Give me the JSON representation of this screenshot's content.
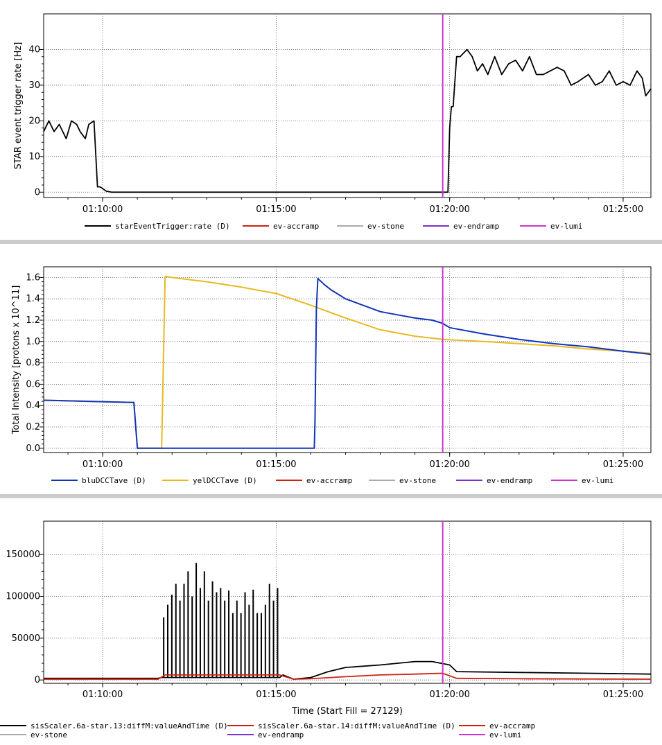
{
  "colors": {
    "black": "#000000",
    "red": "#cc2211",
    "gray": "#aaaaaa",
    "purple": "#7733cc",
    "magenta": "#cc33cc",
    "blue": "#1133bb",
    "yellow": "#e8b820",
    "separator": "#cccccc"
  },
  "x_axis": {
    "title": "Time (Start Fill = 27129)",
    "tick_labels": [
      "01:10:00",
      "01:15:00",
      "01:20:00",
      "01:25:00"
    ],
    "tick_minutes": [
      10,
      15,
      20,
      25
    ],
    "range_minutes": [
      8.3,
      25.8
    ],
    "event_line_minute": 19.8
  },
  "chart_data": [
    {
      "type": "line",
      "ylabel": "STAR event trigger rate [Hz]",
      "ylim": [
        -1.5,
        50
      ],
      "yticks": [
        0,
        10,
        20,
        30,
        40
      ],
      "ytick_labels": [
        "0",
        "10",
        "20",
        "30",
        "40"
      ],
      "grid": true,
      "series": [
        {
          "name": "starEventTrigger:rate (D)",
          "color": "black",
          "x": [
            8.3,
            8.45,
            8.6,
            8.75,
            8.95,
            9.1,
            9.25,
            9.35,
            9.5,
            9.6,
            9.75,
            9.85,
            9.92,
            9.97,
            10.0,
            10.1,
            10.25,
            11,
            15,
            19.8,
            19.95,
            20.0,
            20.05,
            20.1,
            20.2,
            20.3,
            20.5,
            20.65,
            20.8,
            20.95,
            21.1,
            21.3,
            21.5,
            21.7,
            21.9,
            22.1,
            22.3,
            22.5,
            22.7,
            22.9,
            23.1,
            23.3,
            23.5,
            23.7,
            23.85,
            24.0,
            24.2,
            24.4,
            24.6,
            24.8,
            25.0,
            25.2,
            25.4,
            25.55,
            25.65,
            25.8
          ],
          "y": [
            17,
            20,
            17,
            19,
            15,
            20,
            19,
            17,
            15,
            19,
            20,
            1.5,
            1.5,
            1.2,
            1.0,
            0.3,
            0,
            0,
            0,
            0,
            0,
            18,
            24,
            24,
            38,
            38,
            40,
            38,
            34,
            36,
            33,
            38,
            33,
            36,
            37,
            34,
            38,
            33,
            33,
            34,
            35,
            34,
            30,
            31,
            32,
            33,
            30,
            31,
            34,
            30,
            31,
            30,
            34,
            32,
            27,
            29
          ]
        }
      ],
      "legend": [
        {
          "label": "starEventTrigger:rate (D)",
          "color": "black"
        },
        {
          "label": "ev-accramp",
          "color": "red"
        },
        {
          "label": "ev-stone",
          "color": "gray"
        },
        {
          "label": "ev-endramp",
          "color": "purple"
        },
        {
          "label": "ev-lumi",
          "color": "magenta"
        }
      ]
    },
    {
      "type": "line",
      "ylabel": "Total Intensity [protons x 10^11]",
      "ylim": [
        -0.04,
        1.7
      ],
      "yticks": [
        0.0,
        0.2,
        0.4,
        0.6,
        0.8,
        1.0,
        1.2,
        1.4,
        1.6
      ],
      "ytick_labels": [
        "0.0",
        "0.2",
        "0.4",
        "0.6",
        "0.8",
        "1.0",
        "1.2",
        "1.4",
        "1.6"
      ],
      "grid": true,
      "series": [
        {
          "name": "yelDCCTave (D)",
          "color": "yellow",
          "x": [
            8.3,
            10.8,
            10.9,
            11.0,
            11.7,
            11.8,
            12.0,
            13.0,
            14.0,
            15.0,
            16.0,
            17.0,
            18.0,
            19.0,
            19.8,
            21.0,
            22.0,
            23.0,
            24.0,
            25.0,
            25.8
          ],
          "y": [
            0.45,
            0.43,
            0.43,
            0.0,
            0.0,
            1.61,
            1.6,
            1.56,
            1.51,
            1.45,
            1.34,
            1.22,
            1.11,
            1.05,
            1.02,
            1.0,
            0.98,
            0.96,
            0.93,
            0.91,
            0.89
          ]
        },
        {
          "name": "bluDCCTave (D)",
          "color": "blue",
          "x": [
            8.3,
            10.8,
            10.9,
            11.0,
            16.1,
            16.12,
            16.16,
            16.2,
            16.4,
            16.6,
            16.8,
            17.0,
            17.5,
            18.0,
            18.5,
            19.0,
            19.5,
            19.8,
            20.0,
            21.0,
            22.0,
            23.0,
            24.0,
            25.0,
            25.8
          ],
          "y": [
            0.45,
            0.43,
            0.43,
            0.0,
            0.0,
            0.25,
            1.3,
            1.59,
            1.53,
            1.48,
            1.44,
            1.4,
            1.34,
            1.28,
            1.25,
            1.22,
            1.2,
            1.17,
            1.13,
            1.07,
            1.02,
            0.98,
            0.95,
            0.91,
            0.88
          ]
        }
      ],
      "legend": [
        {
          "label": "bluDCCTave (D)",
          "color": "blue"
        },
        {
          "label": "yelDCCTave (D)",
          "color": "yellow"
        },
        {
          "label": "ev-accramp",
          "color": "red"
        },
        {
          "label": "ev-stone",
          "color": "gray"
        },
        {
          "label": "ev-endramp",
          "color": "purple"
        },
        {
          "label": "ev-lumi",
          "color": "magenta"
        }
      ]
    },
    {
      "type": "line",
      "ylabel": "",
      "xlabel": "Time (Start Fill = 27129)",
      "ylim": [
        -4000,
        190000
      ],
      "yticks": [
        0,
        50000,
        100000,
        150000
      ],
      "ytick_labels": [
        "0",
        "50000",
        "100000",
        "150000"
      ],
      "grid": true,
      "series": [
        {
          "name": "sisScaler.6a-star.13:diffM:valueAndTime (D)",
          "color": "black",
          "spike_region": {
            "x_start": 11.7,
            "x_end": 15.1,
            "peak_values": [
              75000,
              90000,
              102000,
              115000,
              95000,
              115000,
              130000,
              100000,
              140000,
              110000,
              130000,
              95000,
              118000,
              105000,
              110000,
              95000,
              107000,
              80000,
              95000,
              80000,
              105000,
              90000,
              108000,
              80000,
              80000,
              90000,
              115000,
              95000,
              110000
            ]
          },
          "x": [
            8.3,
            11.6,
            11.7,
            15.1,
            15.2,
            15.5,
            16.0,
            16.5,
            17.0,
            18.0,
            19.0,
            19.5,
            20.0,
            20.2,
            22.0,
            24.0,
            25.8
          ],
          "y": [
            2000,
            2000,
            3000,
            3000,
            6000,
            1000,
            3000,
            10000,
            15000,
            18000,
            22000,
            22000,
            18000,
            10000,
            9000,
            8000,
            7000
          ]
        },
        {
          "name": "sisScaler.6a-star.14:diffM:valueAndTime (D)",
          "color": "red",
          "x": [
            8.3,
            11.6,
            11.8,
            15.1,
            15.5,
            16.0,
            17.0,
            18.0,
            19.0,
            19.8,
            20.2,
            22.0,
            25.8
          ],
          "y": [
            1000,
            1000,
            6000,
            6000,
            1000,
            1500,
            4000,
            6000,
            7000,
            8000,
            2000,
            1500,
            1000
          ]
        }
      ],
      "legend": [
        {
          "label": "sisScaler.6a-star.13:diffM:valueAndTime (D)",
          "color": "black"
        },
        {
          "label": "sisScaler.6a-star.14:diffM:valueAndTime (D)",
          "color": "red"
        },
        {
          "label": "ev-accramp",
          "color": "red"
        },
        {
          "label": "ev-stone",
          "color": "gray"
        },
        {
          "label": "ev-endramp",
          "color": "purple"
        },
        {
          "label": "ev-lumi",
          "color": "magenta"
        }
      ]
    }
  ]
}
